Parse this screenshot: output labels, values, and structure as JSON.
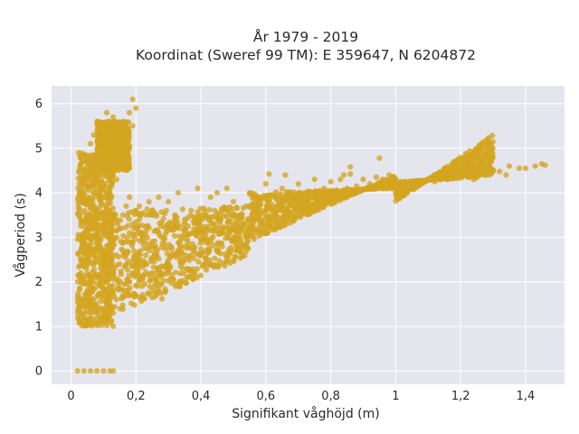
{
  "chart_data": {
    "type": "scatter",
    "title_lines": [
      "År 1979 - 2019",
      "Koordinat (Sweref 99 TM): E 359647, N 6204872"
    ],
    "xlabel": "Signifikant våghöjd (m)",
    "ylabel": "Vågperiod (s)",
    "xlim": [
      -0.06,
      1.52
    ],
    "ylim": [
      -0.3,
      6.4
    ],
    "x_ticks": [
      0,
      0.2,
      0.4,
      0.6,
      0.8,
      1,
      1.2,
      1.4
    ],
    "x_tick_labels": [
      "0",
      "0,2",
      "0,4",
      "0,6",
      "0,8",
      "1",
      "1,2",
      "1,4"
    ],
    "y_ticks": [
      0,
      1,
      2,
      3,
      4,
      5,
      6
    ],
    "y_tick_labels": [
      "0",
      "1",
      "2",
      "3",
      "4",
      "5",
      "6"
    ],
    "grid": true,
    "marker_color": "#D4A520",
    "background_color": "#E5E5EE",
    "series": [
      {
        "values": [
          [
            0.02,
            0.0
          ],
          [
            0.04,
            0.0
          ],
          [
            0.06,
            0.0
          ],
          [
            0.08,
            0.0
          ],
          [
            0.1,
            0.0
          ],
          [
            0.12,
            0.0
          ],
          [
            0.13,
            0.0
          ],
          [
            0.02,
            1.55
          ],
          [
            0.03,
            1.3
          ],
          [
            0.03,
            2.2
          ],
          [
            0.03,
            3.4
          ],
          [
            0.04,
            1.05
          ],
          [
            0.04,
            2.8
          ],
          [
            0.04,
            4.0
          ],
          [
            0.05,
            1.1
          ],
          [
            0.05,
            1.8
          ],
          [
            0.05,
            2.6
          ],
          [
            0.05,
            3.3
          ],
          [
            0.05,
            4.3
          ],
          [
            0.05,
            4.8
          ],
          [
            0.06,
            1.2
          ],
          [
            0.06,
            2.0
          ],
          [
            0.06,
            3.0
          ],
          [
            0.06,
            3.8
          ],
          [
            0.06,
            5.1
          ],
          [
            0.07,
            1.05
          ],
          [
            0.07,
            1.6
          ],
          [
            0.07,
            2.4
          ],
          [
            0.07,
            3.2
          ],
          [
            0.07,
            4.5
          ],
          [
            0.07,
            5.3
          ],
          [
            0.08,
            1.3
          ],
          [
            0.08,
            2.1
          ],
          [
            0.08,
            2.9
          ],
          [
            0.08,
            3.6
          ],
          [
            0.08,
            4.2
          ],
          [
            0.08,
            5.6
          ],
          [
            0.09,
            1.1
          ],
          [
            0.09,
            1.9
          ],
          [
            0.09,
            2.7
          ],
          [
            0.09,
            3.5
          ],
          [
            0.09,
            4.6
          ],
          [
            0.09,
            5.2
          ],
          [
            0.1,
            1.4
          ],
          [
            0.1,
            2.3
          ],
          [
            0.1,
            3.1
          ],
          [
            0.1,
            3.9
          ],
          [
            0.1,
            4.4
          ],
          [
            0.1,
            5.5
          ],
          [
            0.11,
            1.2
          ],
          [
            0.11,
            2.0
          ],
          [
            0.11,
            2.8
          ],
          [
            0.11,
            3.7
          ],
          [
            0.11,
            4.9
          ],
          [
            0.11,
            5.8
          ],
          [
            0.12,
            1.5
          ],
          [
            0.12,
            2.5
          ],
          [
            0.12,
            3.3
          ],
          [
            0.12,
            4.1
          ],
          [
            0.12,
            5.0
          ],
          [
            0.12,
            5.4
          ],
          [
            0.13,
            1.3
          ],
          [
            0.13,
            2.2
          ],
          [
            0.13,
            3.0
          ],
          [
            0.13,
            4.7
          ],
          [
            0.13,
            5.7
          ],
          [
            0.14,
            1.6
          ],
          [
            0.14,
            2.6
          ],
          [
            0.14,
            3.4
          ],
          [
            0.14,
            4.3
          ],
          [
            0.14,
            5.1
          ],
          [
            0.15,
            1.4
          ],
          [
            0.15,
            2.4
          ],
          [
            0.15,
            3.2
          ],
          [
            0.15,
            4.6
          ],
          [
            0.15,
            5.3
          ],
          [
            0.16,
            1.7
          ],
          [
            0.16,
            2.7
          ],
          [
            0.16,
            3.5
          ],
          [
            0.16,
            4.8
          ],
          [
            0.16,
            5.6
          ],
          [
            0.17,
            1.8
          ],
          [
            0.17,
            2.9
          ],
          [
            0.17,
            3.7
          ],
          [
            0.17,
            4.5
          ],
          [
            0.17,
            5.2
          ],
          [
            0.18,
            2.0
          ],
          [
            0.18,
            3.1
          ],
          [
            0.18,
            3.9
          ],
          [
            0.18,
            5.0
          ],
          [
            0.18,
            5.8
          ],
          [
            0.19,
            6.1
          ],
          [
            0.19,
            5.5
          ],
          [
            0.19,
            2.2
          ],
          [
            0.19,
            3.3
          ],
          [
            0.2,
            5.9
          ],
          [
            0.2,
            2.3
          ],
          [
            0.2,
            3.2
          ],
          [
            0.2,
            3.6
          ],
          [
            0.21,
            2.5
          ],
          [
            0.21,
            3.4
          ],
          [
            0.21,
            3.7
          ],
          [
            0.22,
            2.4
          ],
          [
            0.22,
            3.0
          ],
          [
            0.23,
            2.6
          ],
          [
            0.23,
            3.5
          ],
          [
            0.24,
            2.7
          ],
          [
            0.24,
            3.8
          ],
          [
            0.25,
            1.65
          ],
          [
            0.25,
            2.9
          ],
          [
            0.25,
            3.6
          ],
          [
            0.26,
            2.8
          ],
          [
            0.27,
            3.1
          ],
          [
            0.27,
            3.9
          ],
          [
            0.28,
            1.62
          ],
          [
            0.28,
            3.0
          ],
          [
            0.3,
            2.4
          ],
          [
            0.3,
            3.3
          ],
          [
            0.3,
            3.8
          ],
          [
            0.32,
            2.6
          ],
          [
            0.32,
            3.5
          ],
          [
            0.33,
            4.0
          ],
          [
            0.34,
            2.7
          ],
          [
            0.35,
            3.4
          ],
          [
            0.36,
            2.9
          ],
          [
            0.37,
            3.6
          ],
          [
            0.38,
            3.1
          ],
          [
            0.39,
            4.1
          ],
          [
            0.4,
            2.95
          ],
          [
            0.4,
            3.5
          ],
          [
            0.42,
            3.2
          ],
          [
            0.43,
            3.9
          ],
          [
            0.44,
            3.3
          ],
          [
            0.45,
            4.0
          ],
          [
            0.46,
            3.4
          ],
          [
            0.48,
            3.6
          ],
          [
            0.48,
            4.1
          ],
          [
            0.5,
            3.2
          ],
          [
            0.5,
            3.8
          ],
          [
            0.52,
            3.5
          ],
          [
            0.54,
            3.7
          ],
          [
            0.55,
            4.0
          ],
          [
            0.56,
            3.4
          ],
          [
            0.58,
            3.9
          ],
          [
            0.6,
            3.45
          ],
          [
            0.6,
            4.2
          ],
          [
            0.61,
            4.42
          ],
          [
            0.62,
            3.6
          ],
          [
            0.64,
            3.8
          ],
          [
            0.65,
            4.1
          ],
          [
            0.66,
            4.4
          ],
          [
            0.67,
            3.7
          ],
          [
            0.69,
            3.95
          ],
          [
            0.7,
            4.2
          ],
          [
            0.72,
            3.85
          ],
          [
            0.74,
            4.0
          ],
          [
            0.75,
            4.3
          ],
          [
            0.77,
            3.95
          ],
          [
            0.78,
            4.1
          ],
          [
            0.8,
            4.05
          ],
          [
            0.8,
            4.25
          ],
          [
            0.82,
            4.0
          ],
          [
            0.83,
            4.3
          ],
          [
            0.84,
            4.4
          ],
          [
            0.85,
            4.1
          ],
          [
            0.86,
            4.42
          ],
          [
            0.86,
            4.58
          ],
          [
            0.88,
            4.15
          ],
          [
            0.9,
            4.3
          ],
          [
            0.92,
            4.2
          ],
          [
            0.94,
            4.35
          ],
          [
            0.95,
            4.78
          ],
          [
            0.96,
            4.3
          ],
          [
            0.98,
            4.4
          ],
          [
            1.0,
            4.0
          ],
          [
            1.0,
            4.3
          ],
          [
            1.02,
            4.1
          ],
          [
            1.04,
            4.2
          ],
          [
            1.06,
            4.15
          ],
          [
            1.08,
            4.25
          ],
          [
            1.1,
            4.3
          ],
          [
            1.12,
            4.25
          ],
          [
            1.14,
            4.35
          ],
          [
            1.16,
            4.3
          ],
          [
            1.17,
            4.5
          ],
          [
            1.18,
            4.35
          ],
          [
            1.2,
            4.4
          ],
          [
            1.22,
            4.4
          ],
          [
            1.24,
            4.3
          ],
          [
            1.26,
            4.5
          ],
          [
            1.28,
            4.4
          ],
          [
            1.3,
            4.5
          ],
          [
            1.32,
            4.48
          ],
          [
            1.34,
            4.4
          ],
          [
            1.35,
            4.6
          ],
          [
            1.38,
            4.55
          ],
          [
            1.4,
            4.55
          ],
          [
            1.43,
            4.6
          ],
          [
            1.45,
            4.65
          ],
          [
            1.46,
            4.62
          ]
        ],
        "dense_regions": [
          {
            "x": [
              0.02,
              0.13
            ],
            "y": [
              1.0,
              4.9
            ]
          },
          {
            "x": [
              0.08,
              0.18
            ],
            "y": [
              4.5,
              5.6
            ]
          },
          {
            "x": [
              0.1,
              0.55
            ],
            "y": [
              1.1,
              3.7
            ]
          },
          {
            "x": [
              0.55,
              1.0
            ],
            "y": [
              2.9,
              4.1
            ]
          },
          {
            "x": [
              1.0,
              1.3
            ],
            "y": [
              3.8,
              4.35
            ]
          }
        ]
      }
    ]
  }
}
